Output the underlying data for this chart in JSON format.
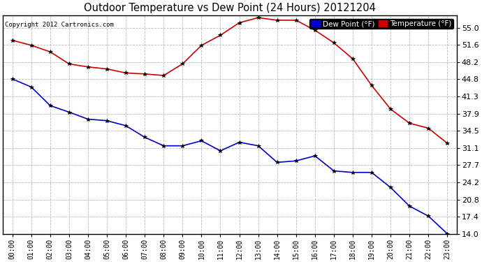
{
  "title": "Outdoor Temperature vs Dew Point (24 Hours) 20121204",
  "copyright": "Copyright 2012 Cartronics.com",
  "background_color": "#ffffff",
  "plot_background": "#ffffff",
  "grid_color": "#bbbbbb",
  "x_labels": [
    "00:00",
    "01:00",
    "02:00",
    "03:00",
    "04:00",
    "05:00",
    "06:00",
    "07:00",
    "08:00",
    "09:00",
    "10:00",
    "11:00",
    "12:00",
    "13:00",
    "14:00",
    "15:00",
    "16:00",
    "17:00",
    "18:00",
    "19:00",
    "20:00",
    "21:00",
    "22:00",
    "23:00"
  ],
  "y_ticks": [
    14.0,
    17.4,
    20.8,
    24.2,
    27.7,
    31.1,
    34.5,
    37.9,
    41.3,
    44.8,
    48.2,
    51.6,
    55.0
  ],
  "temperature": [
    52.5,
    51.5,
    50.2,
    47.8,
    47.2,
    46.8,
    46.0,
    45.8,
    45.5,
    47.8,
    51.5,
    53.5,
    56.0,
    57.0,
    56.5,
    56.5,
    54.5,
    52.0,
    48.8,
    43.5,
    38.8,
    36.0,
    35.0,
    32.0
  ],
  "dew_point": [
    44.8,
    43.2,
    39.5,
    38.2,
    36.8,
    36.5,
    35.5,
    33.2,
    31.5,
    31.5,
    32.5,
    30.5,
    32.2,
    31.5,
    28.2,
    28.5,
    29.5,
    26.5,
    26.2,
    26.2,
    23.2,
    19.5,
    17.5,
    14.0
  ],
  "temp_color": "#cc0000",
  "dew_color": "#0000cc",
  "marker": "*",
  "marker_color": "#000000",
  "marker_size": 4,
  "line_width": 1.2,
  "ylim": [
    14.0,
    57.5
  ],
  "legend_dew_label": "Dew Point (°F)",
  "legend_temp_label": "Temperature (°F)"
}
